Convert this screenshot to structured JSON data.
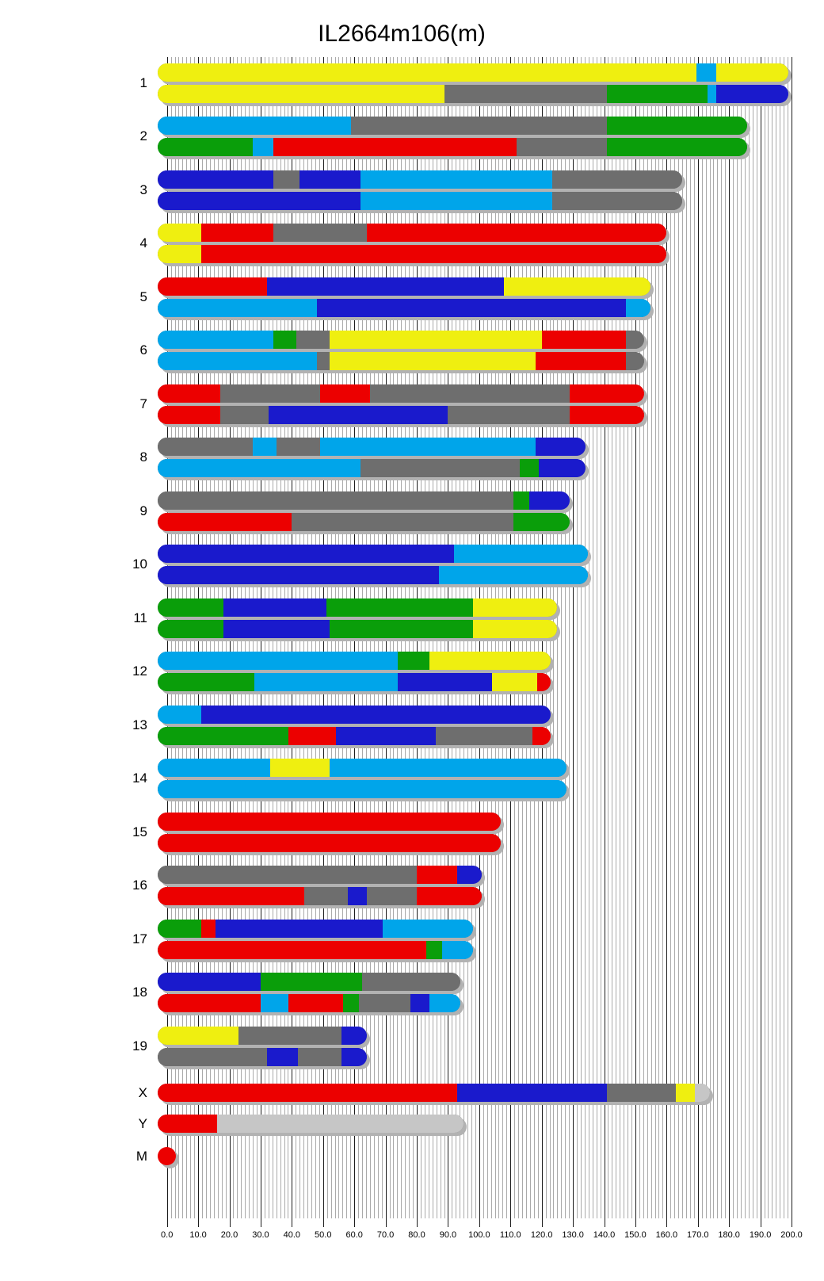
{
  "title": "IL2664m106(m)",
  "chart_data": {
    "type": "bar",
    "subtype": "chromosome-ideogram-horizontal-stacked",
    "title": "IL2664m106(m)",
    "xlabel": "",
    "ylabel": "",
    "grid": true,
    "legend": false,
    "x_axis": {
      "min": 0,
      "max": 200,
      "major_tick_step": 10,
      "minor_tick_step": 1.25,
      "tick_labels": [
        "0.0",
        "10.0",
        "20.0",
        "30.0",
        "40.0",
        "50.0",
        "60.0",
        "70.0",
        "80.0",
        "90.0",
        "100.0",
        "110.0",
        "120.0",
        "130.0",
        "140.0",
        "150.0",
        "160.0",
        "170.0",
        "180.0",
        "190.0",
        "200.0"
      ]
    },
    "colors": {
      "yellow": "#efef10",
      "gray": "#6e6e6e",
      "green": "#0a9e0a",
      "red": "#ec0000",
      "blue": "#1a1acc",
      "cyan": "#00a5ea",
      "silver": "#c6c6c6"
    },
    "chromosomes": [
      {
        "name": "1",
        "length": 196,
        "homologs": [
          [
            {
              "c": "yellow",
              "s": 0,
              "e": 169.5
            },
            {
              "c": "cyan",
              "s": 169.5,
              "e": 176
            },
            {
              "c": "yellow",
              "s": 176,
              "e": 196
            }
          ],
          [
            {
              "c": "yellow",
              "s": 0,
              "e": 89
            },
            {
              "c": "gray",
              "s": 89,
              "e": 141
            },
            {
              "c": "green",
              "s": 141,
              "e": 173
            },
            {
              "c": "cyan",
              "s": 173,
              "e": 176
            },
            {
              "c": "blue",
              "s": 176,
              "e": 196
            }
          ]
        ]
      },
      {
        "name": "2",
        "length": 183,
        "homologs": [
          [
            {
              "c": "cyan",
              "s": 0,
              "e": 59
            },
            {
              "c": "gray",
              "s": 59,
              "e": 141
            },
            {
              "c": "green",
              "s": 141,
              "e": 183
            }
          ],
          [
            {
              "c": "green",
              "s": 0,
              "e": 27.5
            },
            {
              "c": "cyan",
              "s": 27.5,
              "e": 34
            },
            {
              "c": "red",
              "s": 34,
              "e": 112
            },
            {
              "c": "gray",
              "s": 112,
              "e": 141
            },
            {
              "c": "green",
              "s": 141,
              "e": 183
            }
          ]
        ]
      },
      {
        "name": "3",
        "length": 162,
        "homologs": [
          [
            {
              "c": "blue",
              "s": 0,
              "e": 34
            },
            {
              "c": "gray",
              "s": 34,
              "e": 42.5
            },
            {
              "c": "blue",
              "s": 42.5,
              "e": 62
            },
            {
              "c": "cyan",
              "s": 62,
              "e": 123.5
            },
            {
              "c": "gray",
              "s": 123.5,
              "e": 162
            }
          ],
          [
            {
              "c": "blue",
              "s": 0,
              "e": 62
            },
            {
              "c": "cyan",
              "s": 62,
              "e": 123.5
            },
            {
              "c": "gray",
              "s": 123.5,
              "e": 162
            }
          ]
        ]
      },
      {
        "name": "4",
        "length": 157,
        "homologs": [
          [
            {
              "c": "yellow",
              "s": 0,
              "e": 11
            },
            {
              "c": "red",
              "s": 11,
              "e": 34
            },
            {
              "c": "gray",
              "s": 34,
              "e": 64
            },
            {
              "c": "red",
              "s": 64,
              "e": 157
            }
          ],
          [
            {
              "c": "yellow",
              "s": 0,
              "e": 11
            },
            {
              "c": "red",
              "s": 11,
              "e": 157
            }
          ]
        ]
      },
      {
        "name": "5",
        "length": 152,
        "homologs": [
          [
            {
              "c": "red",
              "s": 0,
              "e": 32
            },
            {
              "c": "blue",
              "s": 32,
              "e": 108
            },
            {
              "c": "yellow",
              "s": 108,
              "e": 152
            }
          ],
          [
            {
              "c": "cyan",
              "s": 0,
              "e": 48
            },
            {
              "c": "blue",
              "s": 48,
              "e": 147
            },
            {
              "c": "cyan",
              "s": 147,
              "e": 152
            }
          ]
        ]
      },
      {
        "name": "6",
        "length": 150,
        "homologs": [
          [
            {
              "c": "cyan",
              "s": 0,
              "e": 34
            },
            {
              "c": "green",
              "s": 34,
              "e": 41.5
            },
            {
              "c": "gray",
              "s": 41.5,
              "e": 52
            },
            {
              "c": "yellow",
              "s": 52,
              "e": 120
            },
            {
              "c": "red",
              "s": 120,
              "e": 147
            },
            {
              "c": "gray",
              "s": 147,
              "e": 150
            }
          ],
          [
            {
              "c": "cyan",
              "s": 0,
              "e": 48
            },
            {
              "c": "gray",
              "s": 48,
              "e": 52
            },
            {
              "c": "yellow",
              "s": 52,
              "e": 118
            },
            {
              "c": "red",
              "s": 118,
              "e": 147
            },
            {
              "c": "gray",
              "s": 147,
              "e": 150
            }
          ]
        ]
      },
      {
        "name": "7",
        "length": 150,
        "homologs": [
          [
            {
              "c": "red",
              "s": 0,
              "e": 17
            },
            {
              "c": "gray",
              "s": 17,
              "e": 49
            },
            {
              "c": "red",
              "s": 49,
              "e": 65
            },
            {
              "c": "gray",
              "s": 65,
              "e": 129
            },
            {
              "c": "red",
              "s": 129,
              "e": 150
            }
          ],
          [
            {
              "c": "red",
              "s": 0,
              "e": 17
            },
            {
              "c": "gray",
              "s": 17,
              "e": 32.5
            },
            {
              "c": "blue",
              "s": 32.5,
              "e": 90
            },
            {
              "c": "gray",
              "s": 90,
              "e": 129
            },
            {
              "c": "red",
              "s": 129,
              "e": 150
            }
          ]
        ]
      },
      {
        "name": "8",
        "length": 131,
        "homologs": [
          [
            {
              "c": "gray",
              "s": 0,
              "e": 27.5
            },
            {
              "c": "cyan",
              "s": 27.5,
              "e": 35
            },
            {
              "c": "gray",
              "s": 35,
              "e": 49
            },
            {
              "c": "cyan",
              "s": 49,
              "e": 118
            },
            {
              "c": "blue",
              "s": 118,
              "e": 131
            }
          ],
          [
            {
              "c": "cyan",
              "s": 0,
              "e": 62
            },
            {
              "c": "gray",
              "s": 62,
              "e": 113
            },
            {
              "c": "green",
              "s": 113,
              "e": 119
            },
            {
              "c": "blue",
              "s": 119,
              "e": 131
            }
          ]
        ]
      },
      {
        "name": "9",
        "length": 126,
        "homologs": [
          [
            {
              "c": "gray",
              "s": 0,
              "e": 111
            },
            {
              "c": "green",
              "s": 111,
              "e": 116
            },
            {
              "c": "blue",
              "s": 116,
              "e": 126
            }
          ],
          [
            {
              "c": "red",
              "s": 0,
              "e": 40
            },
            {
              "c": "gray",
              "s": 40,
              "e": 111
            },
            {
              "c": "green",
              "s": 111,
              "e": 126
            }
          ]
        ]
      },
      {
        "name": "10",
        "length": 132,
        "homologs": [
          [
            {
              "c": "blue",
              "s": 0,
              "e": 92
            },
            {
              "c": "cyan",
              "s": 92,
              "e": 132
            }
          ],
          [
            {
              "c": "blue",
              "s": 0,
              "e": 87
            },
            {
              "c": "cyan",
              "s": 87,
              "e": 132
            }
          ]
        ]
      },
      {
        "name": "11",
        "length": 122,
        "homologs": [
          [
            {
              "c": "green",
              "s": 0,
              "e": 18
            },
            {
              "c": "blue",
              "s": 18,
              "e": 51
            },
            {
              "c": "green",
              "s": 51,
              "e": 98
            },
            {
              "c": "yellow",
              "s": 98,
              "e": 122
            }
          ],
          [
            {
              "c": "green",
              "s": 0,
              "e": 18
            },
            {
              "c": "blue",
              "s": 18,
              "e": 52
            },
            {
              "c": "green",
              "s": 52,
              "e": 98
            },
            {
              "c": "yellow",
              "s": 98,
              "e": 122
            }
          ]
        ]
      },
      {
        "name": "12",
        "length": 120,
        "homologs": [
          [
            {
              "c": "cyan",
              "s": 0,
              "e": 74
            },
            {
              "c": "green",
              "s": 74,
              "e": 84
            },
            {
              "c": "yellow",
              "s": 84,
              "e": 120
            }
          ],
          [
            {
              "c": "green",
              "s": 0,
              "e": 28
            },
            {
              "c": "cyan",
              "s": 28,
              "e": 74
            },
            {
              "c": "blue",
              "s": 74,
              "e": 104
            },
            {
              "c": "yellow",
              "s": 104,
              "e": 118.5
            },
            {
              "c": "red",
              "s": 118.5,
              "e": 120
            }
          ]
        ]
      },
      {
        "name": "13",
        "length": 120,
        "homologs": [
          [
            {
              "c": "cyan",
              "s": 0,
              "e": 11
            },
            {
              "c": "blue",
              "s": 11,
              "e": 120
            }
          ],
          [
            {
              "c": "green",
              "s": 0,
              "e": 39
            },
            {
              "c": "red",
              "s": 39,
              "e": 54
            },
            {
              "c": "blue",
              "s": 54,
              "e": 86
            },
            {
              "c": "gray",
              "s": 86,
              "e": 117
            },
            {
              "c": "red",
              "s": 117,
              "e": 120
            }
          ]
        ]
      },
      {
        "name": "14",
        "length": 125,
        "homologs": [
          [
            {
              "c": "cyan",
              "s": 0,
              "e": 33
            },
            {
              "c": "yellow",
              "s": 33,
              "e": 52
            },
            {
              "c": "cyan",
              "s": 52,
              "e": 125
            }
          ],
          [
            {
              "c": "cyan",
              "s": 0,
              "e": 125
            }
          ]
        ]
      },
      {
        "name": "15",
        "length": 104,
        "homologs": [
          [
            {
              "c": "red",
              "s": 0,
              "e": 104
            }
          ],
          [
            {
              "c": "red",
              "s": 0,
              "e": 104
            }
          ]
        ]
      },
      {
        "name": "16",
        "length": 98,
        "homologs": [
          [
            {
              "c": "gray",
              "s": 0,
              "e": 80
            },
            {
              "c": "red",
              "s": 80,
              "e": 93
            },
            {
              "c": "blue",
              "s": 93,
              "e": 98
            }
          ],
          [
            {
              "c": "red",
              "s": 0,
              "e": 44
            },
            {
              "c": "gray",
              "s": 44,
              "e": 58
            },
            {
              "c": "blue",
              "s": 58,
              "e": 64
            },
            {
              "c": "gray",
              "s": 64,
              "e": 80
            },
            {
              "c": "red",
              "s": 80,
              "e": 98
            }
          ]
        ]
      },
      {
        "name": "17",
        "length": 95,
        "homologs": [
          [
            {
              "c": "green",
              "s": 0,
              "e": 11
            },
            {
              "c": "red",
              "s": 11,
              "e": 15.5
            },
            {
              "c": "blue",
              "s": 15.5,
              "e": 69
            },
            {
              "c": "cyan",
              "s": 69,
              "e": 95
            }
          ],
          [
            {
              "c": "red",
              "s": 0,
              "e": 83
            },
            {
              "c": "green",
              "s": 83,
              "e": 88
            },
            {
              "c": "cyan",
              "s": 88,
              "e": 95
            }
          ]
        ]
      },
      {
        "name": "18",
        "length": 91,
        "homologs": [
          [
            {
              "c": "blue",
              "s": 0,
              "e": 30
            },
            {
              "c": "green",
              "s": 30,
              "e": 62.5
            },
            {
              "c": "gray",
              "s": 62.5,
              "e": 91
            }
          ],
          [
            {
              "c": "red",
              "s": 0,
              "e": 30
            },
            {
              "c": "cyan",
              "s": 30,
              "e": 39
            },
            {
              "c": "red",
              "s": 39,
              "e": 56.5
            },
            {
              "c": "green",
              "s": 56.5,
              "e": 61.5
            },
            {
              "c": "gray",
              "s": 61.5,
              "e": 78
            },
            {
              "c": "blue",
              "s": 78,
              "e": 84
            },
            {
              "c": "cyan",
              "s": 84,
              "e": 91
            }
          ]
        ]
      },
      {
        "name": "19",
        "length": 61,
        "homologs": [
          [
            {
              "c": "yellow",
              "s": 0,
              "e": 23
            },
            {
              "c": "gray",
              "s": 23,
              "e": 56
            },
            {
              "c": "blue",
              "s": 56,
              "e": 61
            }
          ],
          [
            {
              "c": "gray",
              "s": 0,
              "e": 32
            },
            {
              "c": "blue",
              "s": 32,
              "e": 42
            },
            {
              "c": "gray",
              "s": 42,
              "e": 56
            },
            {
              "c": "blue",
              "s": 56,
              "e": 61
            }
          ]
        ]
      },
      {
        "name": "X",
        "length": 171,
        "homologs": [
          [
            {
              "c": "red",
              "s": 0,
              "e": 93
            },
            {
              "c": "blue",
              "s": 93,
              "e": 141
            },
            {
              "c": "gray",
              "s": 141,
              "e": 163
            },
            {
              "c": "yellow",
              "s": 163,
              "e": 169
            },
            {
              "c": "silver",
              "s": 169,
              "e": 171
            }
          ]
        ]
      },
      {
        "name": "Y",
        "length": 92,
        "homologs": [
          [
            {
              "c": "red",
              "s": 0,
              "e": 16
            },
            {
              "c": "silver",
              "s": 16,
              "e": 92
            }
          ]
        ]
      },
      {
        "name": "M",
        "length": 3,
        "dot": true,
        "dot_color": "red",
        "homologs": [
          [
            {
              "c": "red",
              "s": 0,
              "e": 3
            }
          ]
        ]
      }
    ]
  }
}
